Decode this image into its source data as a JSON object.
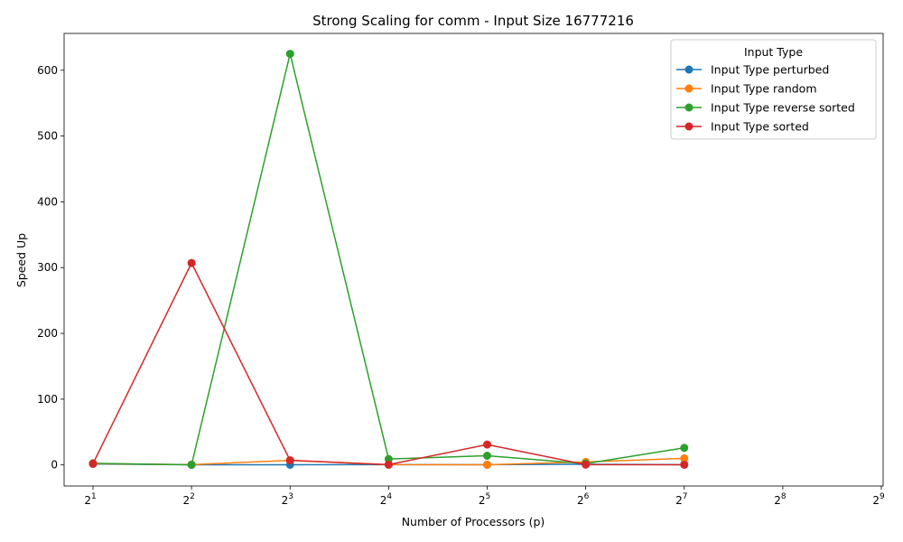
{
  "chart_data": {
    "type": "line",
    "title": "Strong Scaling for comm - Input Size 16777216",
    "xlabel": "Number of Processors (p)",
    "ylabel": "Speed Up",
    "x_scale": "log2",
    "x_ticks": [
      {
        "value": 2,
        "base": "2",
        "exp": "1"
      },
      {
        "value": 4,
        "base": "2",
        "exp": "2"
      },
      {
        "value": 8,
        "base": "2",
        "exp": "3"
      },
      {
        "value": 16,
        "base": "2",
        "exp": "4"
      },
      {
        "value": 32,
        "base": "2",
        "exp": "5"
      },
      {
        "value": 64,
        "base": "2",
        "exp": "6"
      },
      {
        "value": 128,
        "base": "2",
        "exp": "7"
      },
      {
        "value": 256,
        "base": "2",
        "exp": "8"
      },
      {
        "value": 512,
        "base": "2",
        "exp": "9"
      }
    ],
    "y_ticks": [
      0,
      100,
      200,
      300,
      400,
      500,
      600
    ],
    "ylim": [
      -32,
      656
    ],
    "legend_title": "Input Type",
    "legend_position": "top-right",
    "x": [
      2,
      4,
      8,
      16,
      32,
      64,
      128
    ],
    "series": [
      {
        "name": "Input Type perturbed",
        "color": "#1f77b4",
        "values": [
          1.5,
          0.2,
          0.3,
          0.5,
          0.4,
          1.0,
          0.5
        ]
      },
      {
        "name": "Input Type random",
        "color": "#ff7f0e",
        "values": [
          2.0,
          0.5,
          7.0,
          0.4,
          0.3,
          4.5,
          10.0
        ]
      },
      {
        "name": "Input Type reverse sorted",
        "color": "#2ca02c",
        "values": [
          2.5,
          0.3,
          625.0,
          9.0,
          14.0,
          2.0,
          26.0
        ]
      },
      {
        "name": "Input Type sorted",
        "color": "#d62728",
        "values": [
          2.0,
          307.0,
          7.0,
          0.5,
          31.0,
          0.5,
          0.3
        ]
      }
    ]
  }
}
